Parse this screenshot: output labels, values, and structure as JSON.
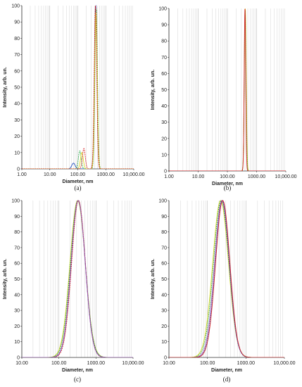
{
  "chart_data": [
    {
      "type": "line",
      "panel_label": "(a)",
      "xlabel": "Diameter, nm",
      "ylabel": "Intensity, arb. un.",
      "x_scale": "log",
      "xlim": [
        1,
        10000
      ],
      "ylim": [
        0,
        100
      ],
      "x_ticks": [
        "1.00",
        "10.00",
        "100.00",
        "1000.00",
        "10,000.00"
      ],
      "y_ticks": [
        "0",
        "10",
        "20",
        "30",
        "40",
        "50",
        "60",
        "70",
        "80",
        "90",
        "100"
      ],
      "grid": true,
      "legend": "none",
      "series": [
        {
          "color": "#1f4fbf",
          "peaks": [
            {
              "center": 70,
              "height": 3.5,
              "width": 0.06
            },
            {
              "center": 440,
              "height": 100,
              "width": 0.045
            }
          ]
        },
        {
          "color": "#2fa84f",
          "peaks": [
            {
              "center": 118,
              "height": 11,
              "width": 0.05
            },
            {
              "center": 455,
              "height": 98,
              "width": 0.045
            }
          ]
        },
        {
          "color": "#d9d92a",
          "peaks": [
            {
              "center": 140,
              "height": 10,
              "width": 0.05
            },
            {
              "center": 445,
              "height": 96,
              "width": 0.045
            }
          ]
        },
        {
          "color": "#d62728",
          "peaks": [
            {
              "center": 165,
              "height": 12.5,
              "width": 0.05
            },
            {
              "center": 430,
              "height": 100,
              "width": 0.045
            }
          ]
        }
      ]
    },
    {
      "type": "line",
      "panel_label": "(b)",
      "xlabel": "Diameter, nm",
      "ylabel": "Intensity, arb. un.",
      "x_scale": "log",
      "xlim": [
        1,
        10000
      ],
      "ylim": [
        0,
        100
      ],
      "x_ticks": [
        "1.00",
        "10.00",
        "100.00",
        "1000.00",
        "10,000.00"
      ],
      "y_ticks": [
        "0",
        "10",
        "20",
        "30",
        "40",
        "50",
        "60",
        "70",
        "80",
        "90",
        "100"
      ],
      "grid": true,
      "legend": "none",
      "series": [
        {
          "color": "#d9d92a",
          "peaks": [
            {
              "center": 410,
              "height": 100,
              "width": 0.032
            }
          ]
        },
        {
          "color": "#2fa84f",
          "peaks": [
            {
              "center": 405,
              "height": 99,
              "width": 0.03
            }
          ]
        },
        {
          "color": "#d62728",
          "peaks": [
            {
              "center": 400,
              "height": 100,
              "width": 0.026
            }
          ]
        }
      ]
    },
    {
      "type": "line",
      "panel_label": "(c)",
      "xlabel": "Diameter, nm",
      "ylabel": "Intensity, arb. un.",
      "x_scale": "log",
      "xlim": [
        10,
        10000
      ],
      "ylim": [
        0,
        100
      ],
      "x_ticks": [
        "10.00",
        "100.00",
        "1000.00",
        "10,000.00"
      ],
      "y_ticks": [
        "0",
        "10",
        "20",
        "30",
        "40",
        "50",
        "60",
        "70",
        "80",
        "90",
        "100"
      ],
      "grid": true,
      "legend": "none",
      "series": [
        {
          "color": "#d9d92a",
          "peaks": [
            {
              "center": 320,
              "height": 100,
              "width": 0.205
            }
          ]
        },
        {
          "color": "#2fa84f",
          "peaks": [
            {
              "center": 325,
              "height": 100,
              "width": 0.2
            }
          ]
        },
        {
          "color": "#1f4fbf",
          "peaks": [
            {
              "center": 332,
              "height": 100,
              "width": 0.19
            }
          ]
        },
        {
          "color": "#d62728",
          "peaks": [
            {
              "center": 338,
              "height": 100,
              "width": 0.185
            }
          ]
        },
        {
          "color": "#9b59b6",
          "peaks": [
            {
              "center": 330,
              "height": 100,
              "width": 0.19
            }
          ]
        }
      ]
    },
    {
      "type": "line",
      "panel_label": "(d)",
      "xlabel": "Diameter, nm",
      "ylabel": "Intensity, arb. un.",
      "x_scale": "log",
      "xlim": [
        10,
        10000
      ],
      "ylim": [
        0,
        100
      ],
      "x_ticks": [
        "10.00",
        "100.00",
        "1000.00",
        "10,000.00"
      ],
      "y_ticks": [
        "0",
        "10",
        "20",
        "30",
        "40",
        "50",
        "60",
        "70",
        "80",
        "90",
        "100"
      ],
      "grid": true,
      "legend": "none",
      "series": [
        {
          "color": "#d9d92a",
          "peaks": [
            {
              "center": 220,
              "height": 100,
              "width": 0.205
            }
          ]
        },
        {
          "color": "#2fa84f",
          "peaks": [
            {
              "center": 228,
              "height": 100,
              "width": 0.2
            }
          ]
        },
        {
          "color": "#9b59b6",
          "peaks": [
            {
              "center": 238,
              "height": 100,
              "width": 0.19
            }
          ]
        },
        {
          "color": "#1f4fbf",
          "peaks": [
            {
              "center": 245,
              "height": 100,
              "width": 0.185
            }
          ]
        },
        {
          "color": "#d62728",
          "peaks": [
            {
              "center": 250,
              "height": 100,
              "width": 0.185
            }
          ]
        }
      ]
    }
  ]
}
